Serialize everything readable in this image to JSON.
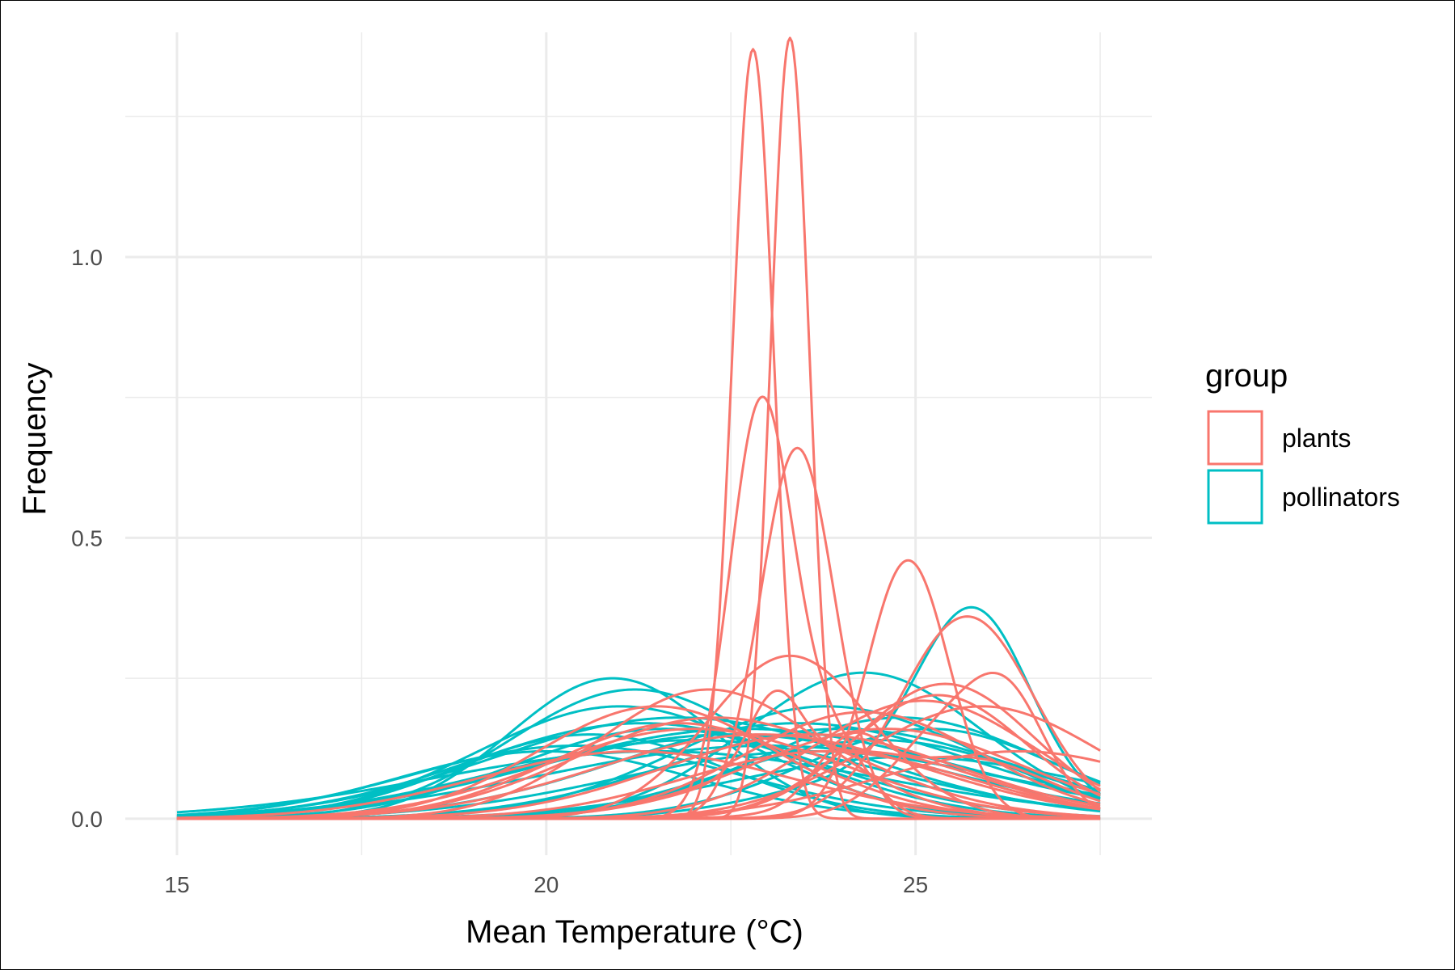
{
  "chart_data": {
    "type": "line",
    "xlabel": "Mean Temperature (°C)",
    "ylabel": "Frequency",
    "xlim": [
      14.3,
      28.2
    ],
    "ylim": [
      -0.065,
      1.4
    ],
    "x_ticks": [
      15,
      20,
      25
    ],
    "x_tick_labels": [
      "15",
      "20",
      "25"
    ],
    "x_minor_ticks": [
      17.5,
      22.5,
      27.5
    ],
    "y_ticks": [
      0.0,
      0.5,
      1.0
    ],
    "y_tick_labels": [
      "0.0",
      "0.5",
      "1.0"
    ],
    "y_minor_ticks": [
      0.25,
      0.75,
      1.25
    ],
    "grid": true,
    "legend": {
      "title": "group",
      "placement": "right",
      "entries": [
        {
          "label": "plants",
          "color": "#F8766D"
        },
        {
          "label": "pollinators",
          "color": "#00BFC4"
        }
      ]
    },
    "x_range": [
      15,
      27.5
    ],
    "groups": [
      {
        "name": "plants",
        "color": "#F8766D",
        "curves": [
          [
            [
              22.8,
              0.28,
              1.37
            ]
          ],
          [
            [
              23.3,
              0.26,
              1.39
            ]
          ],
          [
            [
              22.9,
              0.42,
              0.72
            ],
            [
              23.8,
              0.5,
              0.15
            ]
          ],
          [
            [
              23.4,
              0.5,
              0.66
            ]
          ],
          [
            [
              24.9,
              0.55,
              0.46
            ]
          ],
          [
            [
              25.7,
              0.9,
              0.36
            ]
          ],
          [
            [
              25.6,
              0.8,
              0.18
            ],
            [
              26.3,
              0.5,
              0.12
            ]
          ],
          [
            [
              23.3,
              1.1,
              0.29
            ]
          ],
          [
            [
              22.2,
              1.5,
              0.23
            ]
          ],
          [
            [
              25.4,
              1.2,
              0.24
            ]
          ],
          [
            [
              21.5,
              1.6,
              0.2
            ]
          ],
          [
            [
              24.3,
              1.6,
              0.19
            ]
          ],
          [
            [
              25.1,
              1.5,
              0.21
            ]
          ],
          [
            [
              22.3,
              1.9,
              0.18
            ]
          ],
          [
            [
              23.6,
              2.0,
              0.15
            ]
          ],
          [
            [
              26.4,
              1.9,
              0.12
            ]
          ],
          [
            [
              23.1,
              0.35,
              0.13
            ],
            [
              24.2,
              1.7,
              0.12
            ]
          ],
          [
            [
              21.8,
              1.7,
              0.17
            ]
          ],
          [
            [
              24.6,
              1.8,
              0.16
            ]
          ],
          [
            [
              22.9,
              2.2,
              0.15
            ]
          ],
          [
            [
              21.2,
              2.1,
              0.12
            ]
          ],
          [
            [
              25.9,
              1.6,
              0.2
            ]
          ],
          [
            [
              25.3,
              1.2,
              0.22
            ]
          ],
          [
            [
              23.8,
              1.9,
              0.12
            ]
          ],
          [
            [
              22.0,
              2.0,
              0.16
            ]
          ],
          [
            [
              24.1,
              0.45,
              0.1
            ],
            [
              25.6,
              1.2,
              0.11
            ]
          ]
        ]
      },
      {
        "name": "pollinators",
        "color": "#00BFC4",
        "curves": [
          [
            [
              20.9,
              1.4,
              0.25
            ]
          ],
          [
            [
              21.2,
              1.7,
              0.23
            ]
          ],
          [
            [
              24.3,
              1.6,
              0.26
            ]
          ],
          [
            [
              25.8,
              0.75,
              0.31
            ],
            [
              24.8,
              1.6,
              0.08
            ]
          ],
          [
            [
              21.0,
              1.9,
              0.2
            ]
          ],
          [
            [
              23.8,
              2.0,
              0.2
            ]
          ],
          [
            [
              21.3,
              2.3,
              0.17
            ]
          ],
          [
            [
              22.5,
              2.7,
              0.15
            ]
          ],
          [
            [
              23.4,
              2.4,
              0.17
            ]
          ],
          [
            [
              21.6,
              2.0,
              0.16
            ]
          ],
          [
            [
              24.8,
              1.9,
              0.18
            ]
          ],
          [
            [
              20.6,
              1.8,
              0.15
            ]
          ],
          [
            [
              22.0,
              2.6,
              0.14
            ]
          ],
          [
            [
              24.0,
              2.3,
              0.16
            ]
          ],
          [
            [
              25.2,
              1.7,
              0.16
            ]
          ],
          [
            [
              20.0,
              2.0,
              0.12
            ]
          ],
          [
            [
              23.0,
              3.0,
              0.13
            ]
          ],
          [
            [
              21.8,
              2.5,
              0.18
            ]
          ],
          [
            [
              24.5,
              2.0,
              0.14
            ]
          ],
          [
            [
              22.7,
              2.8,
              0.16
            ]
          ],
          [
            [
              20.4,
              2.2,
              0.13
            ]
          ],
          [
            [
              23.6,
              2.6,
              0.12
            ]
          ],
          [
            [
              24.9,
              2.4,
              0.11
            ]
          ],
          [
            [
              21.5,
              3.0,
              0.12
            ]
          ]
        ]
      }
    ]
  }
}
